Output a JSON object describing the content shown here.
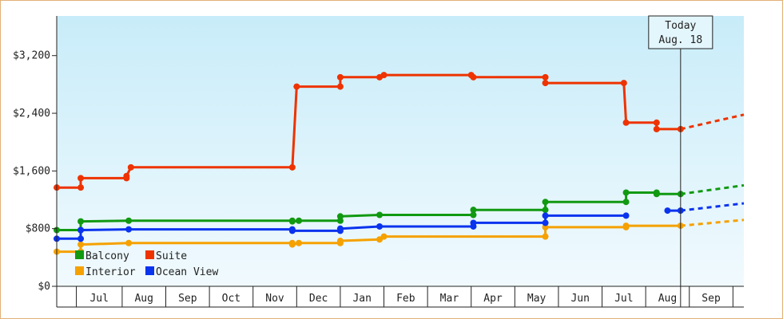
{
  "chart_data": {
    "type": "line",
    "step": true,
    "yaxis": {
      "ticks": [
        0,
        800,
        1600,
        2400,
        3200
      ],
      "tick_labels": [
        "$0",
        "$800",
        "$1,600",
        "$2,400",
        "$3,200"
      ],
      "ylim": [
        0,
        3750
      ]
    },
    "xaxis": {
      "xlim": [
        0,
        15.75
      ],
      "month_labels": [
        "Jul",
        "Aug",
        "Sep",
        "Oct",
        "Nov",
        "Dec",
        "Jan",
        "Feb",
        "Mar",
        "Apr",
        "May",
        "Jun",
        "Jul",
        "Aug",
        "Sep"
      ],
      "month_boundaries": [
        0.45,
        1.5,
        2.5,
        3.5,
        4.5,
        5.5,
        6.5,
        7.5,
        8.5,
        9.5,
        10.5,
        11.5,
        12.5,
        13.5,
        14.5,
        15.5
      ]
    },
    "today": {
      "label": "Today",
      "date": "Aug. 18",
      "x": 14.3
    },
    "legend": {
      "position": "bottom-left",
      "columns": 2
    },
    "series": [
      {
        "name": "Balcony",
        "color": "#119911",
        "points": [
          [
            0,
            780
          ],
          [
            0.55,
            780
          ],
          [
            0.55,
            900
          ],
          [
            1.65,
            910
          ],
          [
            5.4,
            910
          ],
          [
            5.4,
            900
          ],
          [
            5.55,
            910
          ],
          [
            6.5,
            910
          ],
          [
            6.5,
            970
          ],
          [
            7.4,
            990
          ],
          [
            9.55,
            990
          ],
          [
            9.55,
            1060
          ],
          [
            11.2,
            1060
          ],
          [
            11.2,
            1170
          ],
          [
            13.05,
            1170
          ],
          [
            13.05,
            1300
          ],
          [
            13.75,
            1300
          ],
          [
            13.75,
            1280
          ],
          [
            14.3,
            1280
          ]
        ],
        "projection": [
          [
            14.3,
            1280
          ],
          [
            15.75,
            1400
          ]
        ]
      },
      {
        "name": "Suite",
        "color": "#ee3300",
        "points": [
          [
            0,
            1370
          ],
          [
            0.55,
            1370
          ],
          [
            0.55,
            1500
          ],
          [
            1.6,
            1500
          ],
          [
            1.6,
            1530
          ],
          [
            1.7,
            1650
          ],
          [
            5.4,
            1650
          ],
          [
            5.5,
            2770
          ],
          [
            6.5,
            2770
          ],
          [
            6.5,
            2900
          ],
          [
            7.4,
            2900
          ],
          [
            7.5,
            2930
          ],
          [
            9.5,
            2930
          ],
          [
            9.55,
            2900
          ],
          [
            11.2,
            2900
          ],
          [
            11.2,
            2820
          ],
          [
            13.0,
            2820
          ],
          [
            13.05,
            2270
          ],
          [
            13.75,
            2270
          ],
          [
            13.75,
            2180
          ],
          [
            14.3,
            2180
          ]
        ],
        "projection": [
          [
            14.3,
            2180
          ],
          [
            15.75,
            2380
          ]
        ]
      },
      {
        "name": "Interior",
        "color": "#f5a100",
        "points": [
          [
            0,
            480
          ],
          [
            0.55,
            480
          ],
          [
            0.55,
            580
          ],
          [
            1.65,
            600
          ],
          [
            5.4,
            600
          ],
          [
            5.4,
            580
          ],
          [
            5.55,
            600
          ],
          [
            6.5,
            600
          ],
          [
            6.5,
            630
          ],
          [
            7.4,
            650
          ],
          [
            7.5,
            690
          ],
          [
            11.2,
            690
          ],
          [
            11.2,
            820
          ],
          [
            13.05,
            820
          ],
          [
            13.05,
            840
          ],
          [
            14.3,
            840
          ]
        ],
        "projection": [
          [
            14.3,
            840
          ],
          [
            15.75,
            920
          ]
        ]
      },
      {
        "name": "Ocean View",
        "color": "#0a33ee",
        "points": [
          [
            0,
            660
          ],
          [
            0.55,
            660
          ],
          [
            0.55,
            780
          ],
          [
            1.65,
            790
          ],
          [
            5.4,
            790
          ],
          [
            5.4,
            770
          ],
          [
            6.5,
            770
          ],
          [
            6.5,
            800
          ],
          [
            7.4,
            830
          ],
          [
            9.55,
            830
          ],
          [
            9.55,
            880
          ],
          [
            11.2,
            880
          ],
          [
            11.2,
            980
          ],
          [
            13.05,
            980
          ]
        ],
        "segment2": [
          [
            14.0,
            1050
          ],
          [
            14.3,
            1050
          ]
        ],
        "projection": [
          [
            14.3,
            1050
          ],
          [
            15.75,
            1150
          ]
        ]
      }
    ]
  }
}
